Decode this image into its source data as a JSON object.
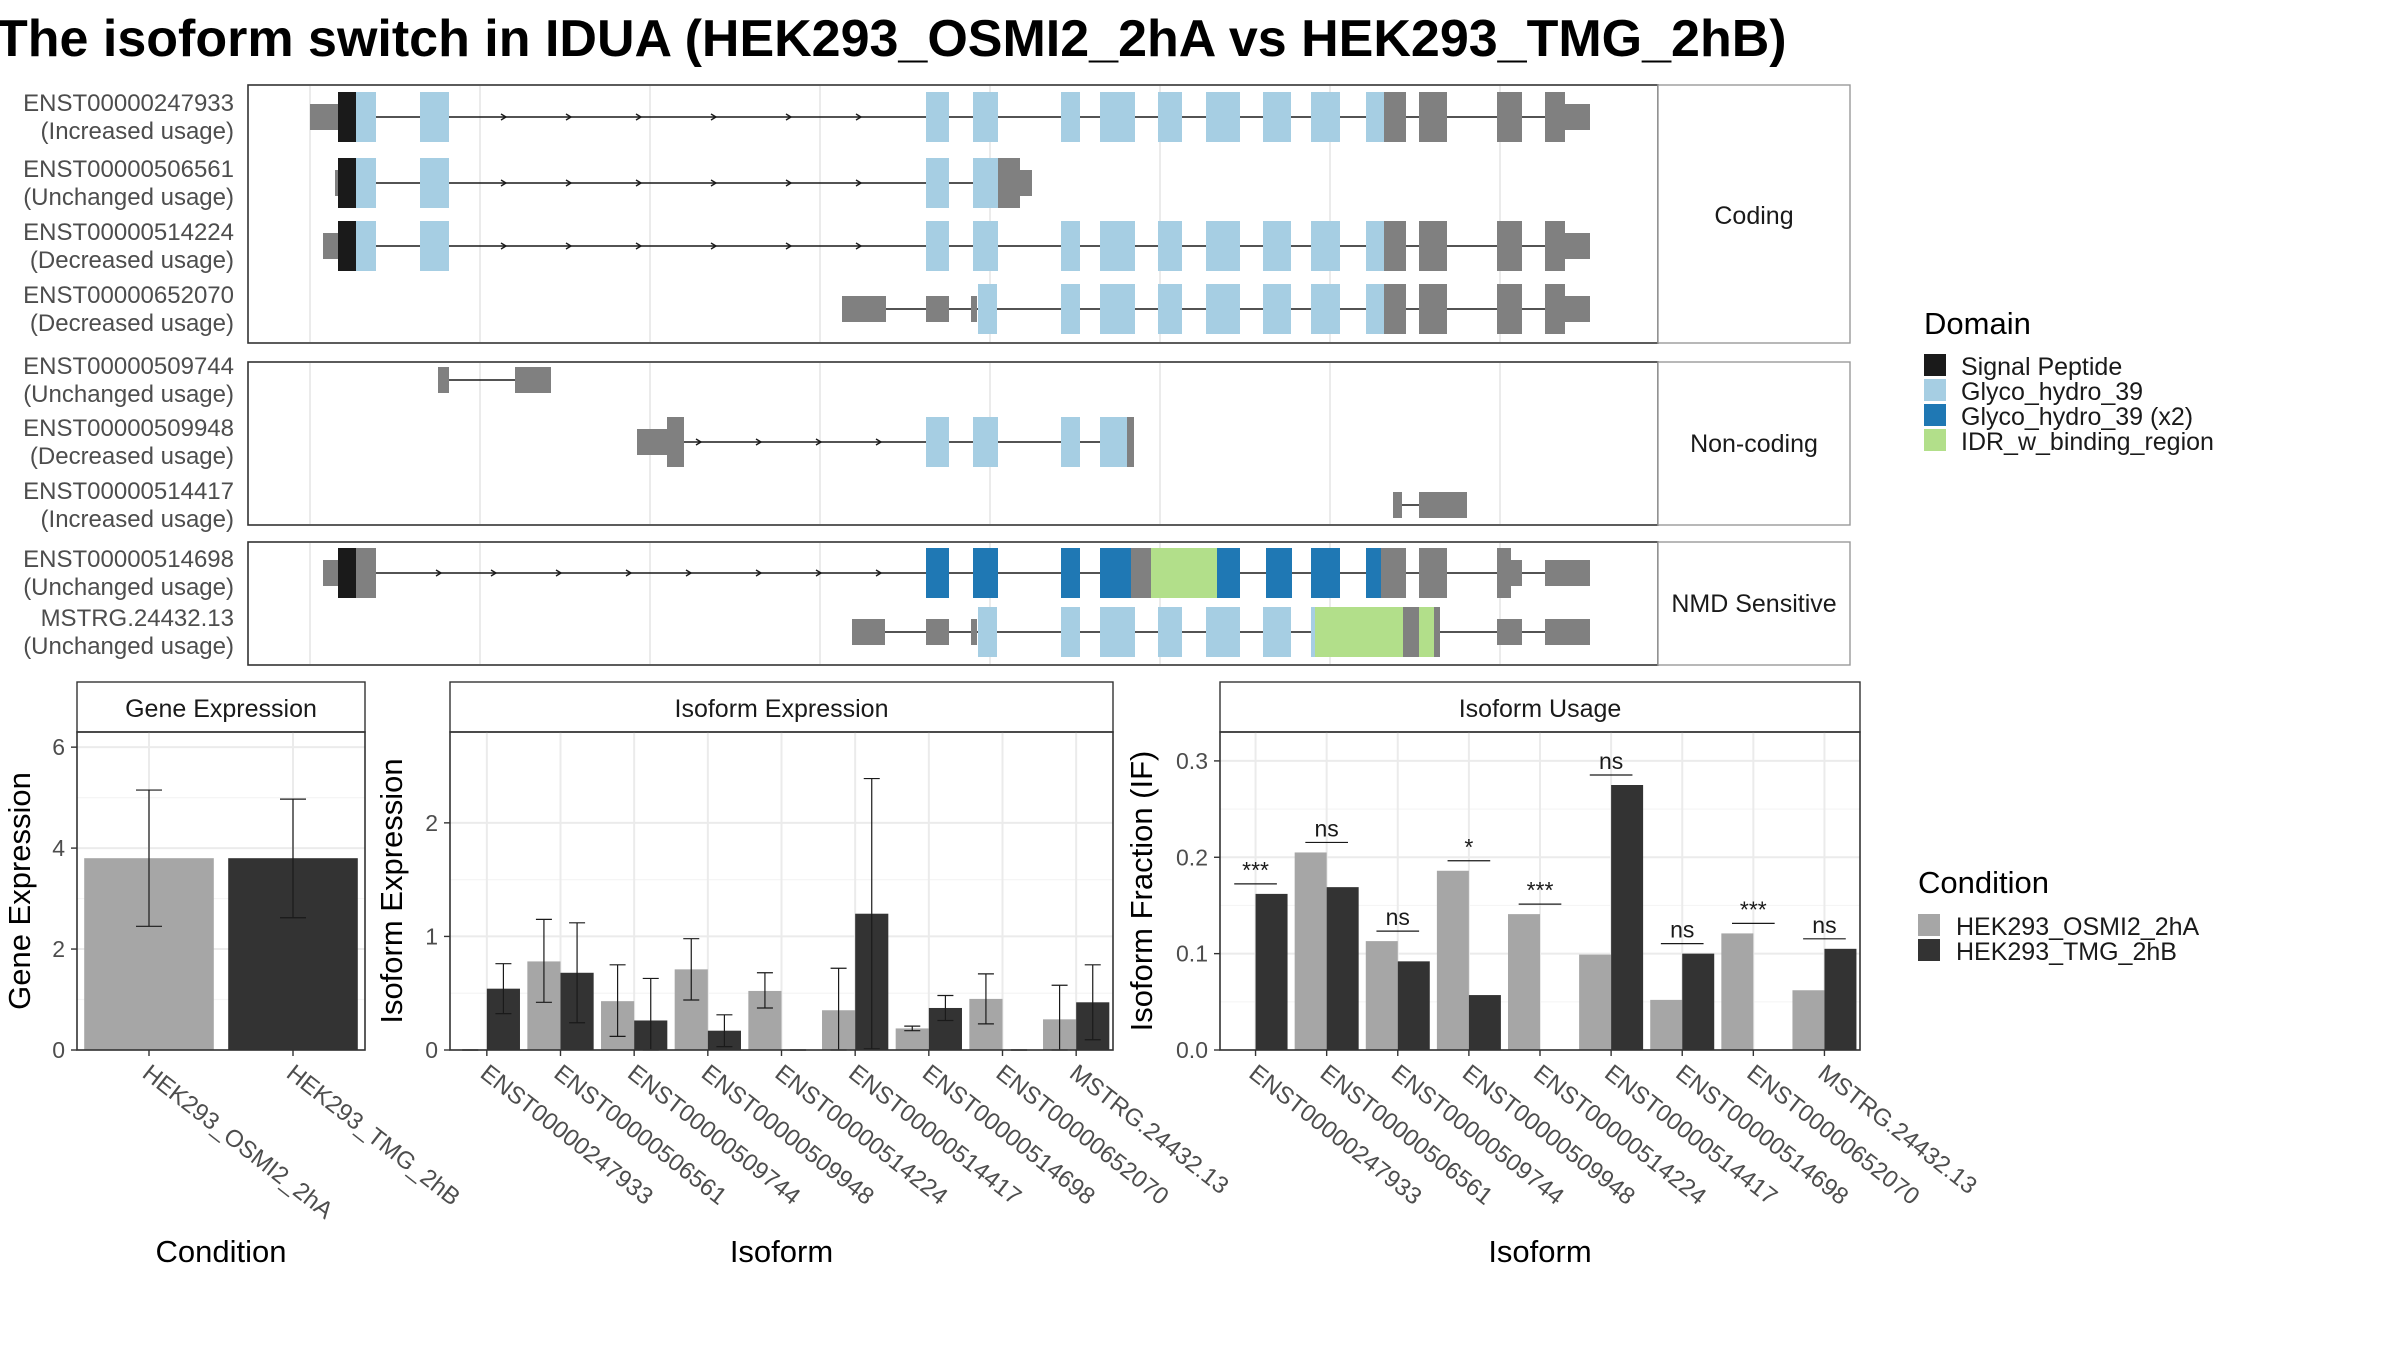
{
  "title": "The isoform switch in IDUA (HEK293_OSMI2_2hA vs HEK293_TMG_2hB)",
  "colors": {
    "utr": "#808080",
    "signal": "#1a1a1a",
    "glyco": "#a6cee3",
    "glyco2": "#1f78b4",
    "idr": "#b2df8a",
    "cond1": "#a6a6a6",
    "cond2": "#333333"
  },
  "structure": {
    "groups": [
      {
        "label": "Coding",
        "isoforms": [
          {
            "name": "ENST00000247933",
            "usage": "(Increased usage)"
          },
          {
            "name": "ENST00000506561",
            "usage": "(Unchanged usage)"
          },
          {
            "name": "ENST00000514224",
            "usage": "(Decreased usage)"
          },
          {
            "name": "ENST00000652070",
            "usage": "(Decreased usage)"
          }
        ]
      },
      {
        "label": "Non-coding",
        "isoforms": [
          {
            "name": "ENST00000509744",
            "usage": "(Unchanged usage)"
          },
          {
            "name": "ENST00000509948",
            "usage": "(Decreased usage)"
          },
          {
            "name": "ENST00000514417",
            "usage": "(Increased usage)"
          }
        ]
      },
      {
        "label": "NMD Sensitive",
        "isoforms": [
          {
            "name": "ENST00000514698",
            "usage": "(Unchanged usage)"
          },
          {
            "name": "MSTRG.24432.13",
            "usage": "(Unchanged usage)"
          }
        ]
      }
    ]
  },
  "domain_legend": {
    "title": "Domain",
    "items": [
      {
        "label": "Signal Peptide",
        "color": "#1a1a1a"
      },
      {
        "label": "Glyco_hydro_39",
        "color": "#a6cee3"
      },
      {
        "label": "Glyco_hydro_39 (x2)",
        "color": "#1f78b4"
      },
      {
        "label": "IDR_w_binding_region",
        "color": "#b2df8a"
      }
    ]
  },
  "condition_legend": {
    "title": "Condition",
    "items": [
      {
        "label": "HEK293_OSMI2_2hA",
        "color": "#a6a6a6"
      },
      {
        "label": "HEK293_TMG_2hB",
        "color": "#333333"
      }
    ]
  },
  "chart_data": [
    {
      "type": "bar",
      "title": "Gene Expression",
      "xlabel": "Condition",
      "ylabel": "Gene Expression",
      "ylim": [
        0,
        6.3
      ],
      "yticks": [
        0,
        2,
        4,
        6
      ],
      "categories": [
        "HEK293_OSMI2_2hA",
        "HEK293_TMG_2hB"
      ],
      "values": [
        3.8,
        3.8
      ],
      "err_low": [
        2.45,
        2.62
      ],
      "err_high": [
        5.15,
        4.97
      ]
    },
    {
      "type": "bar",
      "title": "Isoform Expression",
      "xlabel": "Isoform",
      "ylabel": "Isoform Expression",
      "ylim": [
        0,
        2.8
      ],
      "yticks": [
        0,
        1,
        2
      ],
      "categories": [
        "ENST00000247933",
        "ENST00000506561",
        "ENST00000509744",
        "ENST00000509948",
        "ENST00000514224",
        "ENST00000514417",
        "ENST00000514698",
        "ENST00000652070",
        "MSTRG.24432.13"
      ],
      "series": [
        {
          "name": "HEK293_OSMI2_2hA",
          "values": [
            0,
            0.78,
            0.43,
            0.71,
            0.52,
            0.35,
            0.19,
            0.45,
            0.27
          ],
          "err_low": [
            0,
            0.42,
            0.12,
            0.44,
            0.37,
            0,
            0.17,
            0.23,
            0
          ],
          "err_high": [
            0,
            1.15,
            0.75,
            0.98,
            0.68,
            0.72,
            0.21,
            0.67,
            0.57
          ]
        },
        {
          "name": "HEK293_TMG_2hB",
          "values": [
            0.54,
            0.68,
            0.26,
            0.17,
            0,
            1.2,
            0.37,
            0,
            0.42
          ],
          "err_low": [
            0.32,
            0.24,
            0,
            0.03,
            0,
            0.01,
            0.26,
            0,
            0.09
          ],
          "err_high": [
            0.76,
            1.12,
            0.63,
            0.31,
            0,
            2.39,
            0.48,
            0,
            0.75
          ]
        }
      ]
    },
    {
      "type": "bar",
      "title": "Isoform Usage",
      "xlabel": "Isoform",
      "ylabel": "Isoform Fraction (IF)",
      "ylim": [
        0,
        0.33
      ],
      "yticks": [
        0,
        0.1,
        0.2,
        0.3
      ],
      "ytick_labels": [
        "0.0",
        "0.1",
        "0.2",
        "0.3"
      ],
      "categories": [
        "ENST00000247933",
        "ENST00000506561",
        "ENST00000509744",
        "ENST00000509948",
        "ENST00000514224",
        "ENST00000514417",
        "ENST00000514698",
        "ENST00000652070",
        "MSTRG.24432.13"
      ],
      "series": [
        {
          "name": "HEK293_OSMI2_2hA",
          "values": [
            0,
            0.205,
            0.113,
            0.186,
            0.141,
            0.099,
            0.052,
            0.121,
            0.062
          ]
        },
        {
          "name": "HEK293_TMG_2hB",
          "values": [
            0.162,
            0.169,
            0.092,
            0.057,
            0,
            0.275,
            0.1,
            0,
            0.105
          ]
        }
      ],
      "significance": [
        "***",
        "ns",
        "ns",
        "*",
        "***",
        "ns",
        "ns",
        "***",
        "ns"
      ]
    }
  ]
}
